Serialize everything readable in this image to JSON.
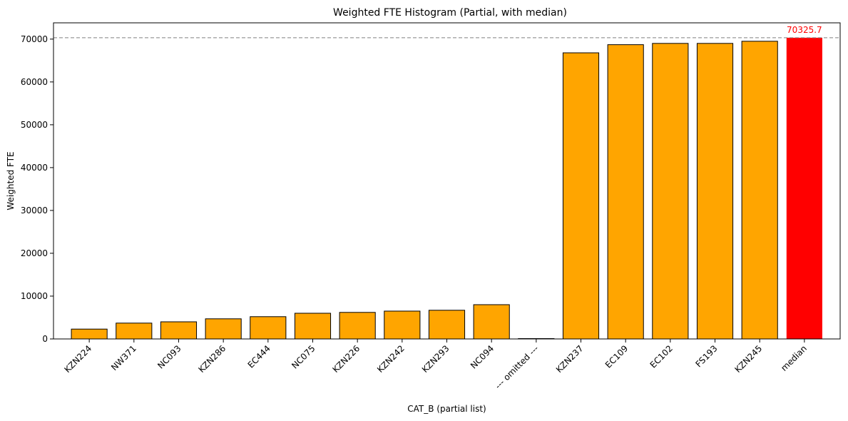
{
  "chart_data": {
    "type": "bar",
    "title": "Weighted FTE Histogram (Partial, with median)",
    "xlabel": "CAT_B (partial list)",
    "ylabel": "Weighted FTE",
    "ylim": [
      0,
      73800
    ],
    "yticks": [
      0,
      10000,
      20000,
      30000,
      40000,
      50000,
      60000,
      70000
    ],
    "grid": false,
    "categories": [
      "KZN224",
      "NW371",
      "NC093",
      "KZN286",
      "EC444",
      "NC075",
      "KZN226",
      "KZN242",
      "KZN293",
      "NC094",
      "--- omitted ---",
      "KZN237",
      "EC109",
      "EC102",
      "FS193",
      "KZN245",
      "median"
    ],
    "values": [
      2300,
      3700,
      4000,
      4700,
      5200,
      6000,
      6200,
      6500,
      6700,
      8000,
      0,
      66800,
      68700,
      69000,
      69000,
      69500,
      70325.7
    ],
    "bar_color": "#ffa500",
    "highlight_color": "#ff0000",
    "highlight_index": 16,
    "reference_line": {
      "value": 70325.7,
      "style": "dashed",
      "color": "#808080"
    },
    "annotation": {
      "text": "70325.7",
      "color": "#ff0000"
    }
  }
}
